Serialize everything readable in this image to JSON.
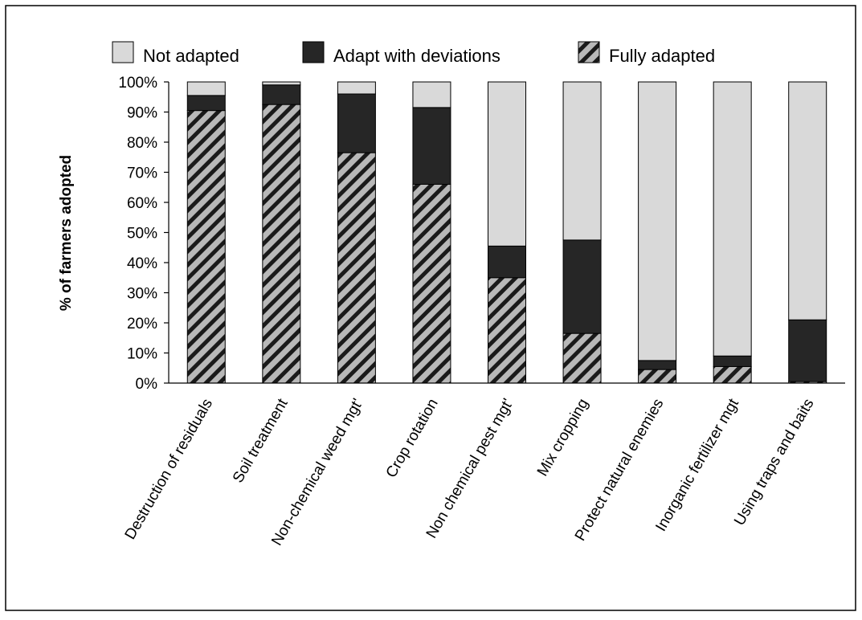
{
  "chart_data": {
    "type": "bar",
    "stacked": true,
    "categories": [
      "Destruction of residuals",
      "Soil treatment",
      "Non-chemical weed mgt'",
      "Crop rotation",
      "Non chemical pest mgt'",
      "Mix cropping",
      "Protect natural enemies",
      "Inorganic fertilizer mgt",
      "Using traps and baits"
    ],
    "series": [
      {
        "name": "Fully adapted",
        "values": [
          90.5,
          92.5,
          76.5,
          66,
          35,
          16.5,
          4.5,
          5.5,
          0.5
        ],
        "color": "#b8b8b8",
        "pattern": "diagonal-hatch"
      },
      {
        "name": "Adapt with deviations",
        "values": [
          5,
          6.5,
          19.5,
          25.5,
          10.5,
          31,
          3,
          3.5,
          20.5
        ],
        "color": "#262626"
      },
      {
        "name": "Not adapted",
        "values": [
          4.5,
          1,
          4,
          8.5,
          54.5,
          52.5,
          92.5,
          91,
          79
        ],
        "color": "#d9d9d9"
      }
    ],
    "legend_order": [
      "Not adapted",
      "Adapt with deviations",
      "Fully adapted"
    ],
    "legend_position": "top",
    "title": "",
    "xlabel": "",
    "ylabel": "% of farmers adopted",
    "ylim": [
      0,
      100
    ],
    "yticks": [
      "0%",
      "10%",
      "20%",
      "30%",
      "40%",
      "50%",
      "60%",
      "70%",
      "80%",
      "90%",
      "100%"
    ],
    "grid": false
  }
}
